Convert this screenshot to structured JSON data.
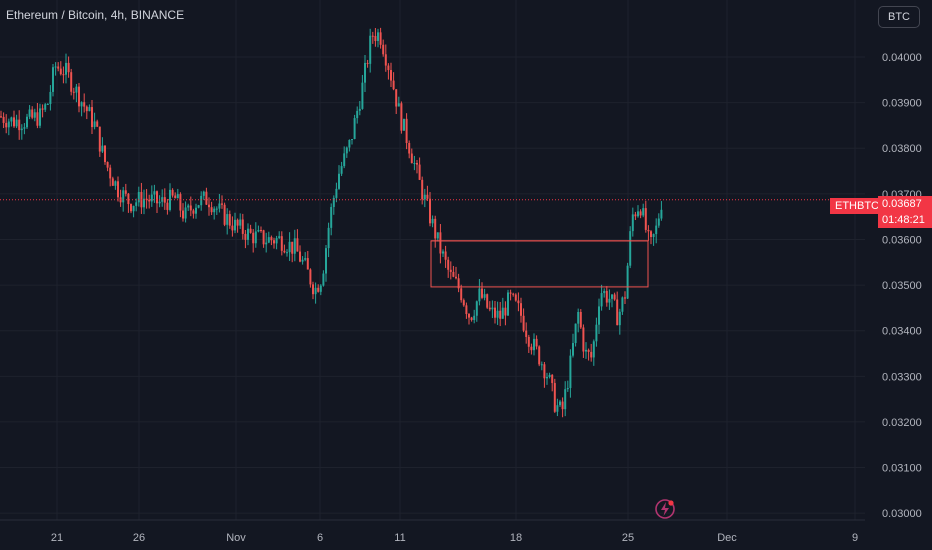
{
  "header": {
    "title": "Ethereum / Bitcoin, 4h, BINANCE"
  },
  "toolbar": {
    "currency_label": "BTC"
  },
  "price_label": {
    "ticker": "ETHBTC",
    "price": "0.03687",
    "countdown": "01:48:21"
  },
  "icons": {
    "alert": "lightning-icon"
  },
  "colors": {
    "up": "#26a69a",
    "down": "#ef5350",
    "background": "#131722",
    "grid": "#1e222d",
    "tag": "#f23645",
    "box": "#ef5350"
  },
  "chart_data": {
    "type": "candlestick",
    "symbol": "ETHBTC",
    "interval": "4h",
    "exchange": "BINANCE",
    "y_ticks": [
      "0.04000",
      "0.03900",
      "0.03800",
      "0.03700",
      "0.03600",
      "0.03500",
      "0.03400",
      "0.03300",
      "0.03200",
      "0.03100",
      "0.03000"
    ],
    "x_ticks": [
      "21",
      "26",
      "Nov",
      "6",
      "11",
      "18",
      "25",
      "Dec",
      "9"
    ],
    "ylim": [
      0.02985,
      0.04125
    ],
    "grid": true,
    "price_path": [
      [
        0,
        0.0387
      ],
      [
        12,
        0.0386
      ],
      [
        25,
        0.0386
      ],
      [
        40,
        0.0387
      ],
      [
        48,
        0.039
      ],
      [
        55,
        0.0398
      ],
      [
        65,
        0.0397
      ],
      [
        80,
        0.0391
      ],
      [
        95,
        0.0385
      ],
      [
        105,
        0.0377
      ],
      [
        118,
        0.0371
      ],
      [
        130,
        0.0368
      ],
      [
        145,
        0.0369
      ],
      [
        160,
        0.0368
      ],
      [
        175,
        0.0369
      ],
      [
        185,
        0.0365
      ],
      [
        195,
        0.0368
      ],
      [
        208,
        0.0369
      ],
      [
        220,
        0.0366
      ],
      [
        235,
        0.0363
      ],
      [
        250,
        0.0361
      ],
      [
        265,
        0.036
      ],
      [
        280,
        0.036
      ],
      [
        295,
        0.0358
      ],
      [
        305,
        0.0354
      ],
      [
        315,
        0.0349
      ],
      [
        322,
        0.0352
      ],
      [
        330,
        0.0365
      ],
      [
        338,
        0.0374
      ],
      [
        350,
        0.0381
      ],
      [
        362,
        0.0393
      ],
      [
        372,
        0.0405
      ],
      [
        380,
        0.0405
      ],
      [
        390,
        0.0397
      ],
      [
        400,
        0.0387
      ],
      [
        410,
        0.038
      ],
      [
        420,
        0.0372
      ],
      [
        430,
        0.0365
      ],
      [
        440,
        0.0358
      ],
      [
        450,
        0.0352
      ],
      [
        460,
        0.0349
      ],
      [
        470,
        0.0343
      ],
      [
        480,
        0.0348
      ],
      [
        490,
        0.0344
      ],
      [
        500,
        0.0343
      ],
      [
        510,
        0.0347
      ],
      [
        520,
        0.0344
      ],
      [
        530,
        0.0338
      ],
      [
        540,
        0.0334
      ],
      [
        548,
        0.033
      ],
      [
        555,
        0.0324
      ],
      [
        562,
        0.0322
      ],
      [
        570,
        0.0332
      ],
      [
        578,
        0.0344
      ],
      [
        585,
        0.0335
      ],
      [
        592,
        0.0334
      ],
      [
        600,
        0.0349
      ],
      [
        610,
        0.0347
      ],
      [
        618,
        0.0343
      ],
      [
        625,
        0.0348
      ],
      [
        632,
        0.0365
      ],
      [
        640,
        0.0368
      ],
      [
        645,
        0.0363
      ],
      [
        650,
        0.0358
      ],
      [
        656,
        0.0362
      ],
      [
        662,
        0.0369
      ],
      [
        665,
        0.0367
      ]
    ],
    "last_price": 0.03687,
    "range_box": {
      "x_from_category": "13",
      "x_to_category": "27",
      "top": 0.03597,
      "bottom": 0.03496
    },
    "price_line": 0.03687
  }
}
